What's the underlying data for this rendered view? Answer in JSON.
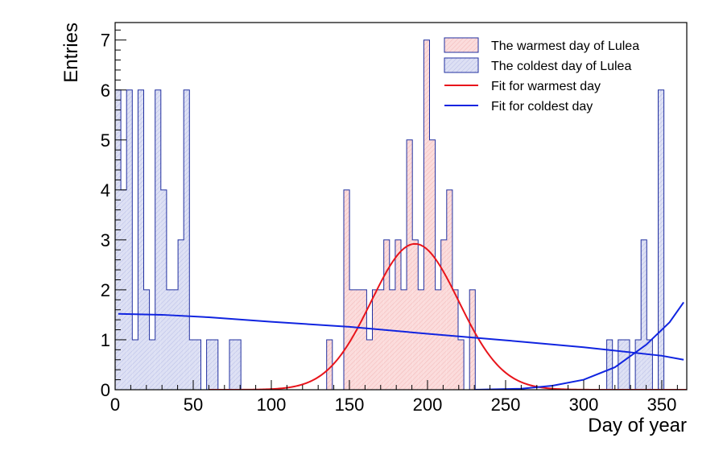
{
  "chart_data": {
    "type": "histogram",
    "xlabel": "Day of year",
    "ylabel": "Entries",
    "xlim": [
      0,
      366
    ],
    "ylim": [
      0,
      7.35
    ],
    "bin_width": 3.66,
    "x_ticks": [
      "0",
      "50",
      "100",
      "150",
      "200",
      "250",
      "300",
      "350"
    ],
    "y_ticks": [
      "0",
      "1",
      "2",
      "3",
      "4",
      "5",
      "6",
      "7"
    ],
    "grid": false,
    "legend_position": "top-right",
    "series": [
      {
        "name": "The warmest day of Lulea",
        "kind": "histogram",
        "fill": "#fbdcdc",
        "stroke": "#2230a0",
        "start_bin": 37,
        "counts": [
          1,
          0,
          0,
          4,
          2,
          2,
          2,
          1,
          2,
          2,
          3,
          2,
          3,
          2,
          5,
          3,
          2,
          7,
          5,
          2,
          3,
          4,
          2,
          1,
          0,
          2,
          0,
          0,
          0,
          0,
          0,
          0,
          0,
          0,
          0,
          0,
          0,
          0,
          0,
          0,
          0,
          0,
          0,
          0,
          0,
          0,
          0,
          0,
          0,
          0,
          0,
          0,
          0,
          0,
          0,
          0,
          0,
          0,
          0,
          0,
          0,
          0,
          0,
          0,
          0,
          0,
          0,
          0,
          0,
          0,
          0,
          0,
          0,
          0,
          0,
          0,
          0,
          0,
          0,
          0,
          0,
          0,
          0,
          0,
          0,
          0,
          0,
          0,
          0,
          0,
          0,
          0,
          0,
          0,
          0,
          0,
          0,
          0,
          0,
          0,
          0,
          0,
          0,
          0,
          0,
          0,
          0,
          0,
          0,
          0,
          0,
          0,
          0,
          0,
          0,
          0,
          0,
          0,
          0,
          0,
          0,
          0,
          0,
          0,
          0,
          0,
          0,
          0,
          0,
          0,
          0,
          0,
          0,
          0,
          0,
          0,
          0,
          0,
          0,
          0,
          0,
          0,
          0,
          0,
          0,
          0,
          0,
          0,
          0,
          0,
          0,
          0,
          0,
          0,
          0,
          0,
          0,
          0,
          0,
          0,
          0,
          0,
          0,
          0,
          0,
          0,
          0,
          0,
          0,
          0,
          0,
          0,
          0,
          0,
          0,
          0,
          0,
          0,
          0,
          0,
          0,
          0,
          0,
          0,
          0,
          0,
          0,
          0,
          0,
          0,
          0,
          0,
          0,
          0,
          0,
          0,
          0,
          0,
          0,
          0,
          0,
          0,
          0,
          0,
          0,
          0,
          0,
          0,
          0,
          0,
          0,
          0,
          0,
          0,
          0,
          0,
          0,
          0,
          0,
          0,
          0,
          0,
          0,
          0,
          0,
          0,
          0,
          0,
          0,
          0,
          0,
          0,
          0,
          0,
          0,
          0,
          0,
          0,
          0,
          0,
          0,
          0,
          0,
          0,
          0,
          0,
          0,
          0,
          0,
          0,
          0,
          0,
          0,
          0,
          0,
          0,
          0,
          0,
          0,
          0,
          0,
          0,
          0,
          0,
          0,
          0,
          0,
          0,
          0,
          0,
          0,
          0,
          0,
          0,
          0,
          0,
          0,
          0,
          0,
          0,
          0,
          0,
          0,
          0,
          0,
          0,
          0,
          0,
          0,
          0,
          0,
          0,
          0,
          0,
          0,
          0,
          0,
          0,
          0,
          0,
          0,
          0,
          0,
          0,
          0,
          0,
          0,
          0,
          0,
          0,
          0,
          0,
          0,
          0,
          0,
          0,
          0,
          0,
          0,
          0,
          0,
          0,
          0,
          0,
          0,
          0,
          0,
          0,
          0,
          0,
          0,
          0,
          0,
          0
        ]
      },
      {
        "name": "The coldest day of Lulea",
        "kind": "histogram",
        "fill": "#dde0f4",
        "stroke": "#2230a0",
        "counts": [
          6,
          4,
          6,
          1,
          6,
          2,
          1,
          6,
          4,
          2,
          2,
          3,
          6,
          1,
          1,
          0,
          1,
          1,
          0,
          0,
          1,
          1,
          0,
          0,
          0,
          0,
          0,
          0,
          0,
          0,
          0,
          0,
          0,
          0,
          0,
          0,
          0,
          0,
          0,
          0,
          0,
          0,
          0,
          0,
          0,
          0,
          0,
          0,
          0,
          0,
          0,
          0,
          0,
          0,
          0,
          0,
          0,
          0,
          0,
          0,
          0,
          0,
          0,
          0,
          0,
          0,
          0,
          0,
          0,
          0,
          0,
          0,
          0,
          0,
          0,
          0,
          0,
          0,
          0,
          0,
          0,
          0,
          0,
          0,
          0,
          0,
          1,
          0,
          1,
          1,
          0,
          1,
          3,
          1,
          0,
          6
        ]
      },
      {
        "name": "Fit for warmest day",
        "kind": "fit",
        "color": "#e8141b",
        "function": "gaussian",
        "amplitude": 2.92,
        "mean": 192,
        "sigma": 28,
        "range": [
          60,
          366
        ]
      },
      {
        "name": "Fit for coldest day",
        "kind": "fit",
        "color": "#1024e0",
        "x": [
          2,
          30,
          60,
          100,
          150,
          200,
          250,
          300,
          350,
          364
        ],
        "y": [
          1.52,
          1.5,
          1.45,
          1.36,
          1.26,
          1.12,
          0.99,
          0.85,
          0.68,
          0.6
        ],
        "x_rise": [
          230,
          260,
          280,
          300,
          320,
          340,
          355,
          364
        ],
        "y_rise": [
          0.0,
          0.02,
          0.08,
          0.2,
          0.45,
          0.9,
          1.35,
          1.75
        ]
      }
    ]
  }
}
